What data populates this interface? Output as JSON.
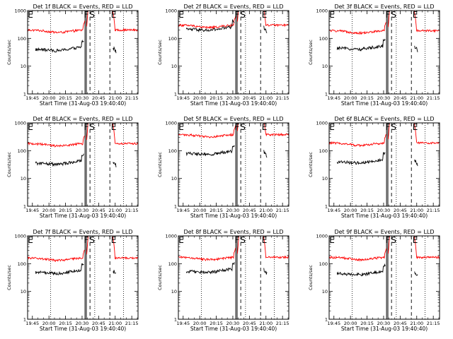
{
  "chart_data": {
    "type": "line",
    "layout": {
      "rows": 3,
      "cols": 3
    },
    "xlabel": "Start Time (31-Aug-03 19:40:40)",
    "ylabel": "Counts/sec",
    "x_ticks": [
      "19:45",
      "20:00",
      "20:15",
      "20:30",
      "20:45",
      "21:00",
      "21:15"
    ],
    "x_tick_minutes": [
      4.333,
      19.333,
      34.333,
      49.333,
      64.333,
      79.333,
      94.333
    ],
    "xlim_minutes": [
      0,
      100
    ],
    "y_scale": "log",
    "y_ticks": [
      "1",
      "10",
      "100",
      "1000"
    ],
    "y_tick_values": [
      1,
      10,
      100,
      1000
    ],
    "ylim": [
      1,
      1000
    ],
    "series_colors": {
      "events": "#000000",
      "lld": "#ff0000"
    },
    "dotted_lines_minutes": [
      20.8,
      60.8,
      86.8
    ],
    "solid_lines_minutes": [
      52.0,
      53.2
    ],
    "dashed_lines_minutes": [
      56.5,
      74.5
    ],
    "interval_markers": [
      {
        "label": "E",
        "x_minutes": 0.2
      },
      {
        "label": "F",
        "x_minutes": 51.0
      },
      {
        "label": "S",
        "x_minutes": 56.0
      },
      {
        "label": "E",
        "x_minutes": 75.5
      }
    ],
    "panels": [
      {
        "title": "Det 1f BLACK = Events, RED = LLD",
        "lld_level": 200,
        "events_level": 45,
        "peak": 1200
      },
      {
        "title": "Det 2f BLACK = Events, RED = LLD",
        "lld_level": 300,
        "events_level": 240,
        "peak": 1500
      },
      {
        "title": "Det 3f BLACK = Events, RED = LLD",
        "lld_level": 190,
        "events_level": 50,
        "peak": 1200
      },
      {
        "title": "Det 4f BLACK = Events, RED = LLD",
        "lld_level": 180,
        "events_level": 40,
        "peak": 1200
      },
      {
        "title": "Det 5f BLACK = Events, RED = LLD",
        "lld_level": 380,
        "events_level": 90,
        "peak": 1500
      },
      {
        "title": "Det 6f BLACK = Events, RED = LLD",
        "lld_level": 190,
        "events_level": 45,
        "peak": 1200
      },
      {
        "title": "Det 7f BLACK = Events, RED = LLD",
        "lld_level": 160,
        "events_level": 55,
        "peak": 1200
      },
      {
        "title": "Det 8f BLACK = Events, RED = LLD",
        "lld_level": 170,
        "events_level": 60,
        "peak": 1200
      },
      {
        "title": "Det 9f BLACK = Events, RED = LLD",
        "lld_level": 170,
        "events_level": 50,
        "peak": 1200
      }
    ]
  }
}
